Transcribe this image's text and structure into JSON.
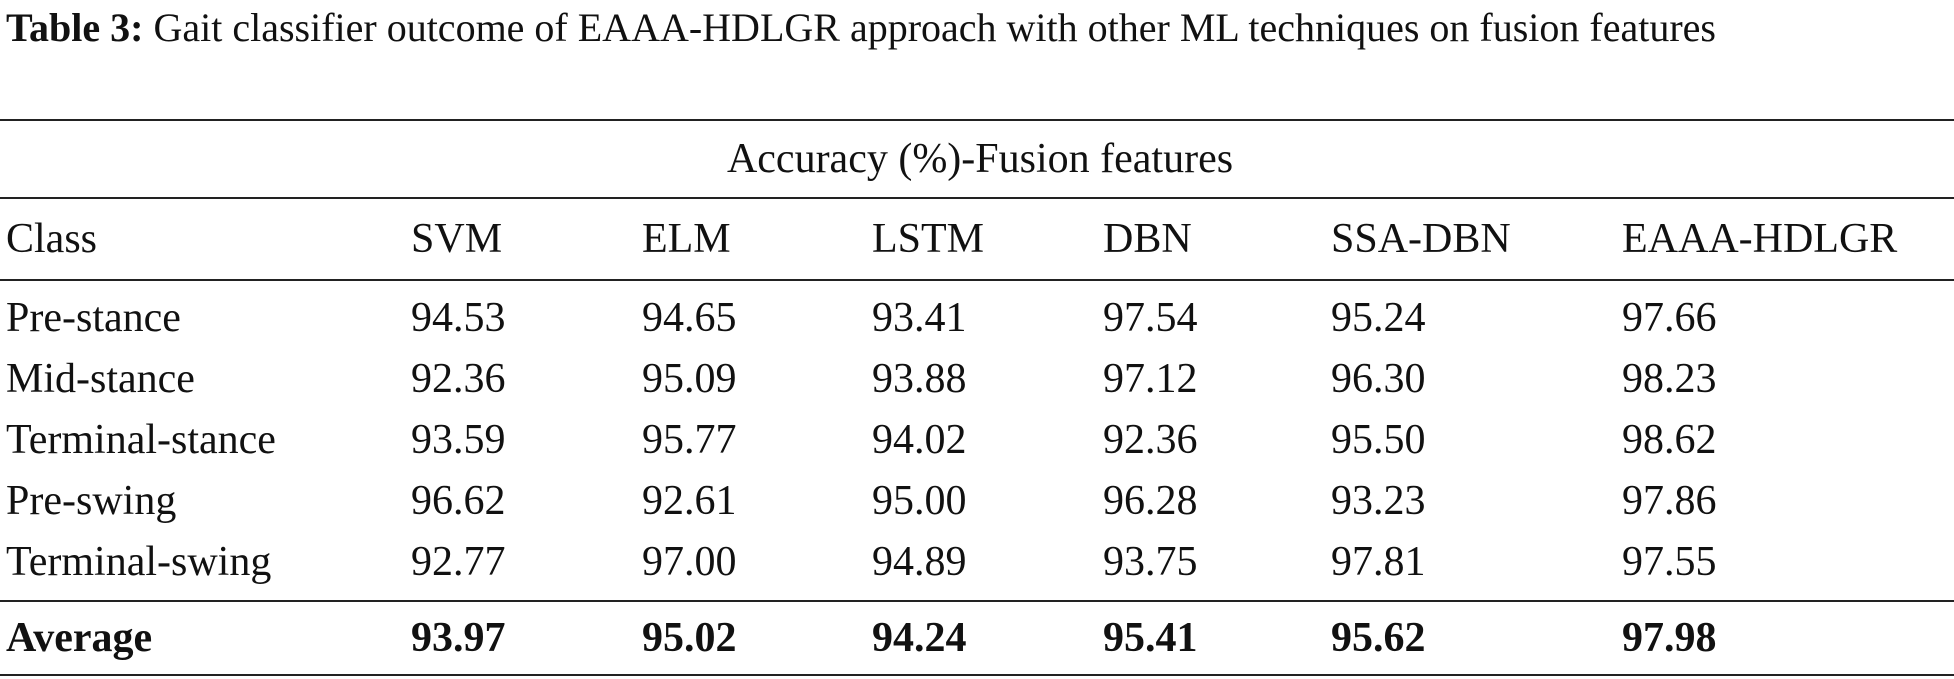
{
  "caption": {
    "label": "Table 3:",
    "text": "Gait classifier outcome of EAAA-HDLGR approach with other ML techniques on fusion features"
  },
  "table": {
    "group_header": "Accuracy (%)-Fusion features",
    "columns": [
      "Class",
      "SVM",
      "ELM",
      "LSTM",
      "DBN",
      "SSA-DBN",
      "EAAA-HDLGR"
    ],
    "rows": [
      [
        "Pre-stance",
        "94.53",
        "94.65",
        "93.41",
        "97.54",
        "95.24",
        "97.66"
      ],
      [
        "Mid-stance",
        "92.36",
        "95.09",
        "93.88",
        "97.12",
        "96.30",
        "98.23"
      ],
      [
        "Terminal-stance",
        "93.59",
        "95.77",
        "94.02",
        "92.36",
        "95.50",
        "98.62"
      ],
      [
        "Pre-swing",
        "96.62",
        "92.61",
        "95.00",
        "96.28",
        "93.23",
        "97.86"
      ],
      [
        "Terminal-swing",
        "92.77",
        "97.00",
        "94.89",
        "93.75",
        "97.81",
        "97.55"
      ]
    ],
    "average": [
      "Average",
      "93.97",
      "95.02",
      "94.24",
      "95.41",
      "95.62",
      "97.98"
    ]
  }
}
